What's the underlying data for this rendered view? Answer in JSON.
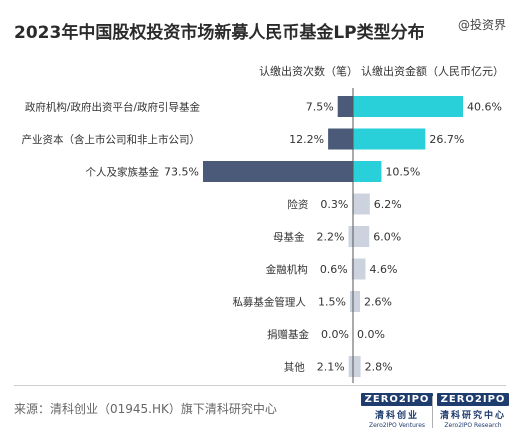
{
  "header": {
    "title": "2023年中国股权投资市场新募人民币基金LP类型分布",
    "watermark": "@投资界"
  },
  "columns": {
    "left": "认缴出资次数（笔）",
    "right": "认缴出资金额（人民币亿元）"
  },
  "colors": {
    "count_bar": "#4a5a78",
    "amount_bar": "#29cfd9",
    "small_bar": "#cdd3de",
    "axis": "#555555"
  },
  "chart_data": {
    "type": "bar",
    "title": "2023年中国股权投资市场新募人民币基金LP类型分布",
    "categories": [
      "政府机构/政府出资平台/政府引导基金",
      "产业资本（含上市公司和非上市公司）",
      "个人及家族基金",
      "险资",
      "母基金",
      "金融机构",
      "私募基金管理人",
      "捐赠基金",
      "其他"
    ],
    "series": [
      {
        "name": "认缴出资次数（笔）",
        "values": [
          7.5,
          12.2,
          73.5,
          0.3,
          2.2,
          0.6,
          1.5,
          0.0,
          2.1
        ],
        "labels": [
          "7.5%",
          "12.2%",
          "73.5%",
          "0.3%",
          "2.2%",
          "0.6%",
          "1.5%",
          "0.0%",
          "2.1%"
        ]
      },
      {
        "name": "认缴出资金额（人民币亿元）",
        "values": [
          40.6,
          26.7,
          10.5,
          6.2,
          6.0,
          4.6,
          2.6,
          0.0,
          2.8
        ],
        "labels": [
          "40.6%",
          "26.7%",
          "10.5%",
          "6.2%",
          "6.0%",
          "4.6%",
          "2.6%",
          "0.0%",
          "2.8%"
        ]
      }
    ],
    "unit": "%"
  },
  "footer": {
    "source": "来源：清科创业（01945.HK）旗下清科研究中心",
    "logo1": {
      "mark": "ZERO2IPO",
      "cn": "清科创业",
      "en": "Zero2IPO Ventures"
    },
    "logo2": {
      "mark": "ZERO2IPO",
      "cn": "清科研究中心",
      "en": "Zero2IPO Research"
    }
  }
}
